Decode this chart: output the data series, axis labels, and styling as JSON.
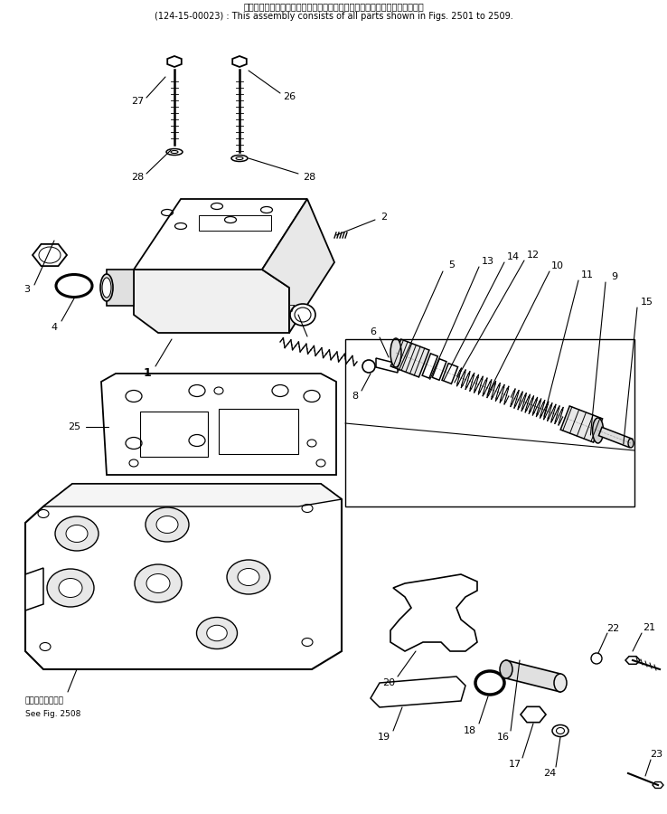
{
  "title_line1": "このアセンブリの構成部品は第２５０１図から第２５０９図まで含みます．",
  "title_line2": "(124-15-00023) : This assembly consists of all parts shown in Figs. 2501 to 2509.",
  "note_jp": "第２５０８図参照",
  "note_en": "See Fig. 2508",
  "bg_color": "#ffffff",
  "line_color": "#000000"
}
